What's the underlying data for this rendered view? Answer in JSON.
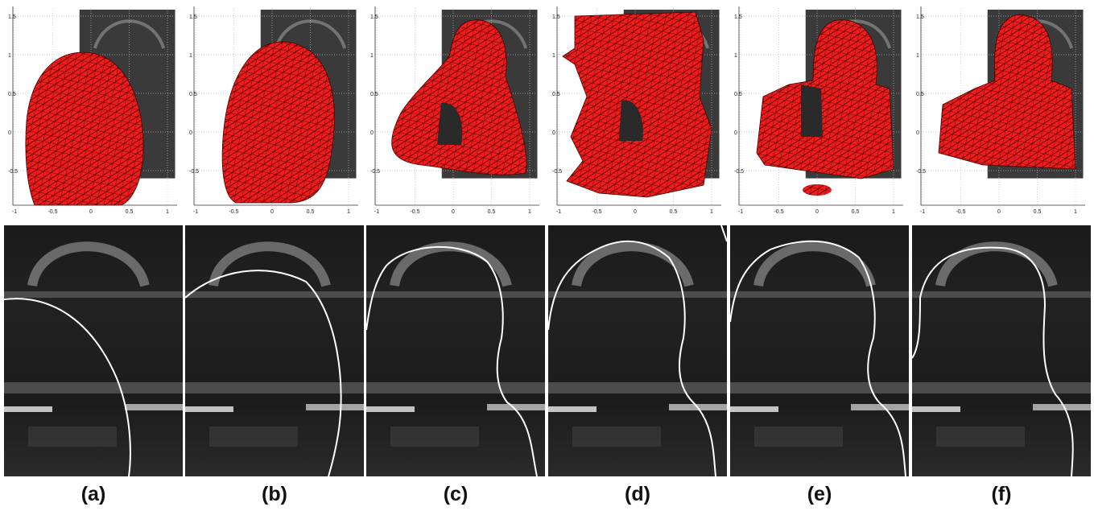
{
  "panels": [
    {
      "label": "(a)",
      "xticks": [
        -1,
        -0.5,
        0,
        0.5,
        1
      ],
      "yticks": [
        -0.5,
        0,
        0.5,
        1,
        1.5
      ]
    },
    {
      "label": "(b)",
      "xticks": [
        -1,
        -0.5,
        0,
        0.5,
        1
      ],
      "yticks": [
        -0.5,
        0,
        0.5,
        1,
        1.5
      ]
    },
    {
      "label": "(c)",
      "xticks": [
        -1,
        -0.5,
        0,
        0.5,
        1
      ],
      "yticks": [
        -0.5,
        0,
        0.5,
        1,
        1.5
      ]
    },
    {
      "label": "(d)",
      "xticks": [
        -1,
        -0.5,
        0,
        0.5,
        1
      ],
      "yticks": [
        -0.5,
        0,
        0.5,
        1,
        1.5
      ]
    },
    {
      "label": "(e)",
      "xticks": [
        -1,
        -0.5,
        0,
        0.5,
        1
      ],
      "yticks": [
        -0.5,
        0,
        0.5,
        1,
        1.5
      ]
    },
    {
      "label": "(f)",
      "xticks": [
        -1,
        -0.5,
        0,
        0.5,
        1
      ],
      "yticks": [
        -0.5,
        0,
        0.5,
        1,
        1.5
      ]
    }
  ]
}
